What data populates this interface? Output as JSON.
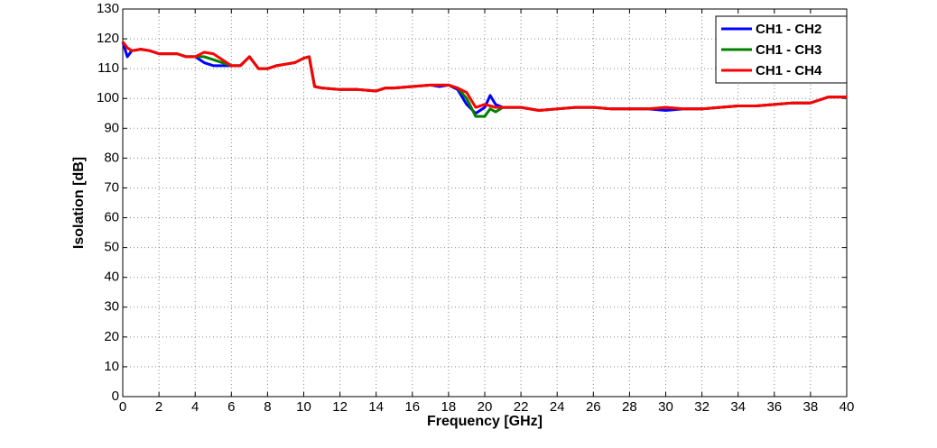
{
  "chart_data": {
    "type": "line",
    "xlabel": "Frequency [GHz]",
    "ylabel": "Isolation [dB]",
    "x": [
      0,
      0.25,
      0.5,
      1,
      1.5,
      2,
      2.5,
      3,
      3.5,
      4,
      4.5,
      5,
      5.5,
      6,
      6.5,
      7,
      7.5,
      8,
      8.5,
      9,
      9.5,
      10,
      10.3,
      10.6,
      11,
      12,
      13,
      14,
      14.5,
      15,
      16,
      17,
      17.5,
      18,
      18.5,
      19,
      19.5,
      20,
      20.3,
      20.6,
      21,
      22,
      23,
      24,
      25,
      26,
      27,
      28,
      29,
      30,
      31,
      32,
      33,
      34,
      35,
      36,
      37,
      38,
      38.5,
      39,
      40
    ],
    "series": [
      {
        "name": "CH1 - CH2",
        "color": "#0000ff",
        "values": [
          119,
          114,
          116,
          116.5,
          116,
          115,
          115,
          115,
          114,
          114,
          112,
          111,
          111,
          111,
          111,
          114,
          110,
          110,
          111,
          111.5,
          112,
          113.5,
          114,
          104,
          103.5,
          103,
          103,
          102.5,
          103.5,
          103.5,
          104,
          104.5,
          104,
          104.5,
          103,
          98,
          95,
          97,
          101,
          98,
          97,
          97,
          96,
          96.5,
          97,
          97,
          96.5,
          96.5,
          96.5,
          96,
          96.5,
          96.5,
          97,
          97.5,
          97.5,
          98,
          98.5,
          98.5,
          99.5,
          100.5,
          100.5
        ]
      },
      {
        "name": "CH1 - CH3",
        "color": "#008000",
        "values": [
          119,
          117,
          116,
          116.5,
          116,
          115,
          115,
          115,
          114,
          114,
          114,
          113,
          112,
          111,
          111,
          114,
          110,
          110,
          111,
          111.5,
          112,
          113.5,
          114,
          104,
          103.5,
          103,
          103,
          102.5,
          103.5,
          103.5,
          104,
          104.5,
          104.5,
          104.5,
          103.5,
          100,
          94,
          94,
          96.5,
          95.5,
          97,
          97,
          96,
          96.5,
          97,
          97,
          96.5,
          96.5,
          96.5,
          97,
          96.5,
          96.5,
          97,
          97.5,
          97.5,
          98,
          98.5,
          98.5,
          99.5,
          100.5,
          100.5
        ]
      },
      {
        "name": "CH1 - CH4",
        "color": "#ff0000",
        "values": [
          119,
          117,
          116,
          116.5,
          116,
          115,
          115,
          115,
          114,
          114,
          115.5,
          115,
          113,
          111,
          111,
          114,
          110,
          110,
          111,
          111.5,
          112,
          113.5,
          114,
          104,
          103.5,
          103,
          103,
          102.5,
          103.5,
          103.5,
          104,
          104.5,
          104.5,
          104.5,
          103.5,
          102,
          97,
          98,
          97.5,
          97,
          97,
          97,
          96,
          96.5,
          97,
          97,
          96.5,
          96.5,
          96.5,
          97,
          96.5,
          96.5,
          97,
          97.5,
          97.5,
          98,
          98.5,
          98.5,
          99.5,
          100.5,
          100.5
        ]
      }
    ],
    "xlim": [
      0,
      40
    ],
    "xticks": [
      0,
      2,
      4,
      6,
      8,
      10,
      12,
      14,
      16,
      18,
      20,
      22,
      24,
      26,
      28,
      30,
      32,
      34,
      36,
      38,
      40
    ],
    "ylim": [
      0,
      130
    ],
    "yticks": [
      0,
      10,
      20,
      30,
      40,
      50,
      60,
      70,
      80,
      90,
      100,
      110,
      120,
      130
    ],
    "grid": true,
    "legend": "upper right"
  }
}
